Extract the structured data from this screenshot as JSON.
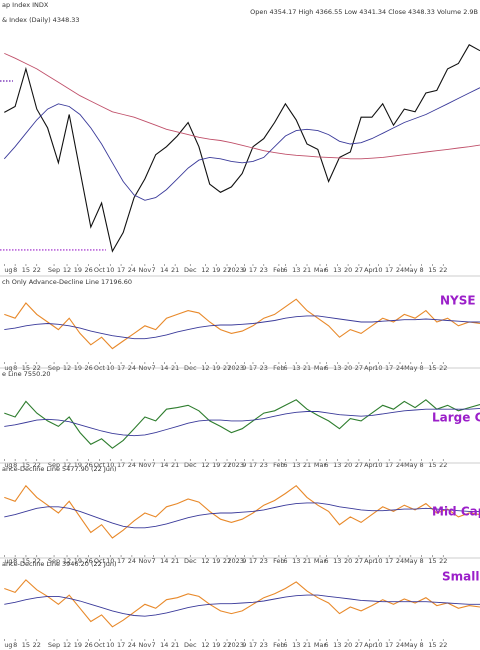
{
  "header": {
    "symbol": "ap Index INDX",
    "quote": "Open 4354.17 High 4366.55 Low 4341.34 Close 4348.33 Volume 2.9B"
  },
  "xaxis": {
    "xlim": [
      -2,
      220
    ],
    "x": [
      0,
      5,
      10,
      15,
      20,
      25,
      30,
      35,
      40,
      45,
      50,
      55,
      60,
      65,
      70,
      75,
      80,
      85,
      90,
      95,
      100,
      105,
      110,
      115,
      120,
      125,
      130,
      135,
      140,
      145,
      150,
      155,
      160,
      165,
      170,
      175,
      180,
      185,
      190,
      195,
      200,
      205,
      210,
      215,
      220
    ],
    "xticks": [
      {
        "value": 0,
        "label": "ug"
      },
      {
        "value": 5,
        "label": "8"
      },
      {
        "value": 10,
        "label": "15"
      },
      {
        "value": 15,
        "label": "22"
      },
      {
        "value": 23,
        "label": "Sep"
      },
      {
        "value": 29,
        "label": "12"
      },
      {
        "value": 34,
        "label": "19"
      },
      {
        "value": 39,
        "label": "26"
      },
      {
        "value": 44,
        "label": "Oct"
      },
      {
        "value": 49,
        "label": "10"
      },
      {
        "value": 54,
        "label": "17"
      },
      {
        "value": 59,
        "label": "24"
      },
      {
        "value": 65,
        "label": "Nov"
      },
      {
        "value": 69,
        "label": "7"
      },
      {
        "value": 74,
        "label": "14"
      },
      {
        "value": 79,
        "label": "21"
      },
      {
        "value": 86,
        "label": "Dec"
      },
      {
        "value": 93,
        "label": "12"
      },
      {
        "value": 98,
        "label": "19"
      },
      {
        "value": 103,
        "label": "27"
      },
      {
        "value": 107,
        "label": "2023"
      },
      {
        "value": 111,
        "label": "9"
      },
      {
        "value": 115,
        "label": "17"
      },
      {
        "value": 120,
        "label": "23"
      },
      {
        "value": 127,
        "label": "Feb"
      },
      {
        "value": 130,
        "label": "6"
      },
      {
        "value": 135,
        "label": "13"
      },
      {
        "value": 140,
        "label": "21"
      },
      {
        "value": 146,
        "label": "Mar"
      },
      {
        "value": 149,
        "label": "6"
      },
      {
        "value": 154,
        "label": "13"
      },
      {
        "value": 159,
        "label": "20"
      },
      {
        "value": 164,
        "label": "27"
      },
      {
        "value": 169,
        "label": "Apr"
      },
      {
        "value": 173,
        "label": "10"
      },
      {
        "value": 178,
        "label": "17"
      },
      {
        "value": 183,
        "label": "24"
      },
      {
        "value": 188,
        "label": "May"
      },
      {
        "value": 193,
        "label": "8"
      },
      {
        "value": 198,
        "label": "15"
      },
      {
        "value": 203,
        "label": "22"
      }
    ]
  },
  "chart_data": [
    {
      "type": "line",
      "title": "& Index (Daily) 4348.33",
      "ylim": [
        3560,
        4440
      ],
      "reference_lines": [
        {
          "value": 4235,
          "x_end": 4,
          "color": "#6a1fb0"
        },
        {
          "value": 3605,
          "x_end": 47,
          "color": "#9b1fc9"
        }
      ],
      "series": [
        {
          "name": "price",
          "color": "#111111",
          "values": [
            4118,
            4140,
            4280,
            4130,
            4060,
            3930,
            4110,
            3900,
            3690,
            3780,
            3600,
            3670,
            3800,
            3870,
            3960,
            3990,
            4030,
            4080,
            3990,
            3850,
            3820,
            3840,
            3890,
            3990,
            4020,
            4080,
            4150,
            4090,
            4000,
            3980,
            3860,
            3950,
            3970,
            4100,
            4100,
            4150,
            4070,
            4130,
            4120,
            4190,
            4200,
            4280,
            4300,
            4370,
            4348
          ]
        },
        {
          "name": "ma200",
          "color": "#c0506a",
          "values": [
            4338,
            4320,
            4300,
            4280,
            4255,
            4230,
            4205,
            4180,
            4160,
            4140,
            4120,
            4110,
            4100,
            4085,
            4070,
            4055,
            4045,
            4035,
            4025,
            4018,
            4013,
            4005,
            3995,
            3985,
            3975,
            3968,
            3962,
            3958,
            3955,
            3952,
            3950,
            3948,
            3945,
            3945,
            3947,
            3950,
            3955,
            3960,
            3965,
            3970,
            3975,
            3980,
            3985,
            3990,
            3996
          ]
        },
        {
          "name": "ma50",
          "color": "#3a3a9a",
          "values": [
            3945,
            3990,
            4040,
            4090,
            4130,
            4150,
            4140,
            4110,
            4060,
            4000,
            3930,
            3860,
            3810,
            3790,
            3800,
            3830,
            3870,
            3910,
            3940,
            3950,
            3945,
            3935,
            3930,
            3935,
            3950,
            3990,
            4030,
            4050,
            4055,
            4050,
            4035,
            4010,
            4000,
            4005,
            4020,
            4040,
            4060,
            4080,
            4095,
            4110,
            4130,
            4150,
            4170,
            4190,
            4210
          ]
        }
      ]
    },
    {
      "type": "line",
      "title": "ch Only Advance-Decline Line 17196.60",
      "tag": "NYSE",
      "ylim": [
        0,
        100
      ],
      "series": [
        {
          "name": "ad",
          "color": "#e8892a",
          "values": [
            60,
            55,
            75,
            60,
            50,
            40,
            55,
            35,
            20,
            30,
            15,
            25,
            35,
            45,
            40,
            55,
            60,
            65,
            62,
            50,
            40,
            35,
            38,
            45,
            55,
            60,
            70,
            80,
            65,
            55,
            45,
            30,
            40,
            35,
            45,
            55,
            50,
            60,
            55,
            65,
            50,
            55,
            45,
            50,
            48
          ]
        },
        {
          "name": "ma",
          "color": "#3a3a9a",
          "values": [
            40,
            42,
            45,
            47,
            48,
            47,
            45,
            42,
            38,
            35,
            32,
            30,
            28,
            28,
            30,
            33,
            37,
            40,
            43,
            45,
            46,
            46,
            47,
            48,
            50,
            52,
            55,
            57,
            58,
            58,
            56,
            54,
            52,
            50,
            50,
            51,
            52,
            53,
            53,
            54,
            53,
            52,
            51,
            50,
            50
          ]
        }
      ]
    },
    {
      "type": "line",
      "title": "e Line 7550.20",
      "tag": "Large Cap",
      "ylim": [
        0,
        100
      ],
      "series": [
        {
          "name": "ad",
          "color": "#2e7d2e",
          "values": [
            55,
            50,
            70,
            55,
            45,
            38,
            50,
            30,
            15,
            22,
            10,
            20,
            35,
            50,
            45,
            60,
            62,
            65,
            58,
            45,
            38,
            30,
            35,
            45,
            55,
            58,
            65,
            72,
            60,
            52,
            45,
            35,
            48,
            45,
            55,
            65,
            60,
            70,
            62,
            72,
            60,
            65,
            58,
            62,
            66
          ]
        },
        {
          "name": "ma",
          "color": "#3a3a9a",
          "values": [
            38,
            40,
            43,
            46,
            47,
            46,
            44,
            40,
            36,
            32,
            29,
            27,
            26,
            27,
            30,
            34,
            38,
            42,
            45,
            46,
            46,
            45,
            45,
            46,
            48,
            51,
            54,
            56,
            57,
            57,
            55,
            53,
            52,
            51,
            52,
            54,
            56,
            58,
            59,
            60,
            60,
            60,
            60,
            60,
            61
          ]
        }
      ]
    },
    {
      "type": "line",
      "title": "ance-Decline Line 5477.90 (22 Jun)",
      "tag": "Mid Cap",
      "ylim": [
        0,
        100
      ],
      "series": [
        {
          "name": "ad",
          "color": "#e8892a",
          "values": [
            70,
            65,
            85,
            70,
            60,
            50,
            65,
            45,
            25,
            35,
            18,
            28,
            40,
            50,
            45,
            58,
            62,
            68,
            64,
            52,
            42,
            38,
            42,
            50,
            60,
            66,
            75,
            85,
            70,
            60,
            52,
            35,
            45,
            38,
            48,
            58,
            52,
            60,
            54,
            62,
            50,
            55,
            45,
            50,
            48
          ]
        },
        {
          "name": "ma",
          "color": "#3a3a9a",
          "values": [
            45,
            48,
            52,
            56,
            58,
            58,
            56,
            52,
            47,
            42,
            37,
            33,
            31,
            31,
            33,
            36,
            40,
            44,
            47,
            49,
            50,
            50,
            51,
            52,
            54,
            57,
            60,
            62,
            63,
            63,
            61,
            58,
            56,
            54,
            53,
            53,
            54,
            55,
            55,
            56,
            55,
            54,
            53,
            52,
            52
          ]
        }
      ]
    },
    {
      "type": "line",
      "title": "ance-Decline Line 3946.20 (22 Jun)",
      "tag": "Small C",
      "ylim": [
        0,
        100
      ],
      "series": [
        {
          "name": "ad",
          "color": "#e8892a",
          "values": [
            72,
            66,
            85,
            70,
            60,
            48,
            62,
            42,
            22,
            32,
            14,
            24,
            36,
            48,
            42,
            55,
            58,
            64,
            60,
            48,
            38,
            34,
            38,
            48,
            58,
            64,
            72,
            82,
            68,
            58,
            50,
            34,
            44,
            38,
            46,
            55,
            48,
            56,
            50,
            58,
            46,
            50,
            42,
            46,
            44
          ]
        },
        {
          "name": "ma",
          "color": "#3a3a9a",
          "values": [
            48,
            51,
            55,
            58,
            60,
            60,
            57,
            53,
            48,
            43,
            38,
            34,
            31,
            30,
            32,
            35,
            39,
            43,
            46,
            48,
            49,
            49,
            50,
            51,
            53,
            56,
            59,
            61,
            62,
            62,
            60,
            58,
            56,
            54,
            53,
            52,
            52,
            52,
            52,
            52,
            51,
            50,
            49,
            48,
            48
          ]
        }
      ]
    }
  ]
}
